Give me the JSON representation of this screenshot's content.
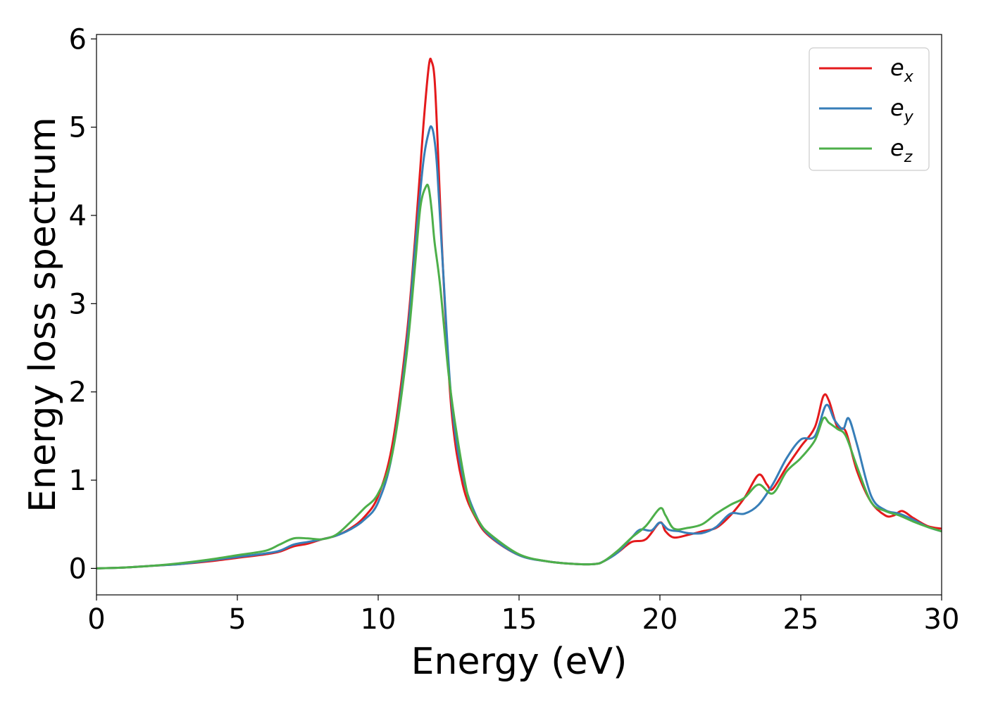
{
  "chart_data": {
    "type": "line",
    "xlabel": "Energy (eV)",
    "ylabel": "Energy loss spectrum",
    "xlim": [
      0,
      30
    ],
    "ylim": [
      -0.3,
      6.05
    ],
    "xticks": [
      0,
      5,
      10,
      15,
      20,
      25,
      30
    ],
    "yticks": [
      0,
      1,
      2,
      3,
      4,
      5,
      6
    ],
    "grid": false,
    "legend_position": "top-right",
    "series": [
      {
        "name": "e",
        "subscript": "x",
        "color": "#e41a1c",
        "x": [
          0,
          1,
          2,
          3,
          4,
          5,
          6,
          6.5,
          7,
          7.5,
          8,
          8.5,
          9,
          9.5,
          10,
          10.5,
          11,
          11.3,
          11.6,
          11.8,
          11.9,
          12.0,
          12.1,
          12.3,
          12.6,
          13,
          13.5,
          14,
          15,
          16,
          17,
          17.7,
          18,
          18.5,
          19,
          19.5,
          20,
          20.2,
          20.5,
          21,
          21.5,
          22,
          22.5,
          23,
          23.5,
          23.8,
          24,
          24.5,
          25,
          25.5,
          25.8,
          26,
          26.3,
          26.6,
          27,
          27.5,
          28,
          28.3,
          28.6,
          29,
          29.5,
          30
        ],
        "y": [
          0,
          0.01,
          0.03,
          0.05,
          0.08,
          0.12,
          0.16,
          0.19,
          0.25,
          0.28,
          0.33,
          0.37,
          0.45,
          0.58,
          0.82,
          1.4,
          2.6,
          3.7,
          5.0,
          5.7,
          5.74,
          5.55,
          4.9,
          3.4,
          1.8,
          0.95,
          0.55,
          0.35,
          0.15,
          0.08,
          0.05,
          0.05,
          0.08,
          0.18,
          0.3,
          0.33,
          0.52,
          0.42,
          0.35,
          0.38,
          0.42,
          0.46,
          0.6,
          0.8,
          1.06,
          0.95,
          0.9,
          1.15,
          1.38,
          1.6,
          1.95,
          1.9,
          1.6,
          1.55,
          1.1,
          0.75,
          0.6,
          0.6,
          0.65,
          0.57,
          0.48,
          0.45
        ]
      },
      {
        "name": "e",
        "subscript": "y",
        "color": "#377eb8",
        "x": [
          0,
          1,
          2,
          3,
          4,
          5,
          6,
          6.5,
          7,
          7.5,
          8,
          8.5,
          9,
          9.5,
          10,
          10.5,
          11,
          11.3,
          11.6,
          11.8,
          11.9,
          12.0,
          12.1,
          12.3,
          12.6,
          13,
          13.5,
          14,
          15,
          16,
          17,
          17.7,
          18,
          18.5,
          19,
          19.3,
          19.7,
          20,
          20.3,
          20.7,
          21,
          21.5,
          22,
          22.5,
          23,
          23.5,
          24,
          24.5,
          25,
          25.5,
          25.9,
          26.2,
          26.5,
          26.7,
          27,
          27.5,
          28,
          28.5,
          29,
          29.5,
          30
        ],
        "y": [
          0,
          0.01,
          0.03,
          0.05,
          0.09,
          0.13,
          0.17,
          0.2,
          0.27,
          0.3,
          0.33,
          0.37,
          0.44,
          0.55,
          0.75,
          1.3,
          2.5,
          3.6,
          4.6,
          4.95,
          5.0,
          4.85,
          4.5,
          3.4,
          1.9,
          1.05,
          0.58,
          0.36,
          0.15,
          0.08,
          0.05,
          0.05,
          0.08,
          0.18,
          0.35,
          0.44,
          0.43,
          0.52,
          0.44,
          0.42,
          0.4,
          0.4,
          0.47,
          0.62,
          0.62,
          0.72,
          0.95,
          1.25,
          1.46,
          1.5,
          1.85,
          1.68,
          1.58,
          1.7,
          1.4,
          0.82,
          0.66,
          0.62,
          0.55,
          0.47,
          0.42
        ]
      },
      {
        "name": "e",
        "subscript": "z",
        "color": "#4daf4a",
        "x": [
          0,
          1,
          2,
          3,
          4,
          5,
          6,
          6.5,
          7,
          7.5,
          8,
          8.5,
          9,
          9.5,
          10,
          10.5,
          11,
          11.3,
          11.5,
          11.7,
          11.8,
          11.9,
          12.0,
          12.2,
          12.5,
          12.8,
          13.2,
          13.6,
          14,
          15,
          16,
          17,
          17.7,
          18,
          18.5,
          19,
          19.5,
          20,
          20.2,
          20.5,
          21,
          21.5,
          22,
          22.5,
          23,
          23.5,
          24,
          24.5,
          25,
          25.5,
          25.8,
          26,
          26.3,
          26.6,
          27,
          27.5,
          28,
          28.5,
          29,
          29.5,
          30
        ],
        "y": [
          0,
          0.01,
          0.03,
          0.06,
          0.1,
          0.15,
          0.2,
          0.27,
          0.34,
          0.34,
          0.33,
          0.38,
          0.52,
          0.68,
          0.85,
          1.3,
          2.4,
          3.4,
          4.1,
          4.33,
          4.3,
          4.05,
          3.7,
          3.2,
          2.2,
          1.5,
          0.8,
          0.52,
          0.38,
          0.16,
          0.08,
          0.05,
          0.05,
          0.08,
          0.2,
          0.35,
          0.48,
          0.68,
          0.6,
          0.45,
          0.46,
          0.5,
          0.62,
          0.72,
          0.8,
          0.95,
          0.85,
          1.1,
          1.25,
          1.45,
          1.7,
          1.65,
          1.58,
          1.5,
          1.15,
          0.75,
          0.65,
          0.6,
          0.53,
          0.47,
          0.42
        ]
      }
    ]
  }
}
